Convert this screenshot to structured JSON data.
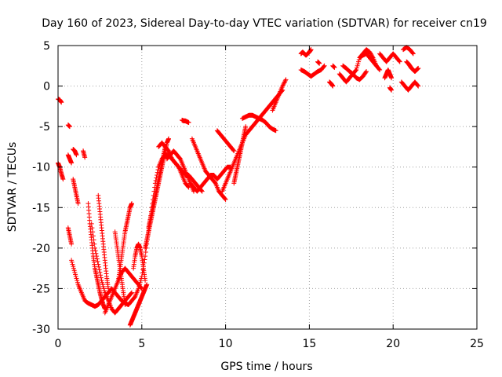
{
  "chart_data": {
    "type": "scatter",
    "title": "Day 160 of 2023, Sidereal Day-to-day VTEC variation (SDTVAR) for receiver cn19",
    "xlabel": "GPS time / hours",
    "ylabel": "SDTVAR / TECUs",
    "xlim": [
      0,
      25
    ],
    "ylim": [
      -30,
      5
    ],
    "xticks": [
      0,
      5,
      10,
      15,
      20,
      25
    ],
    "yticks": [
      -30,
      -25,
      -20,
      -15,
      -10,
      -5,
      0,
      5
    ],
    "grid": true,
    "marker": "+",
    "series": [
      {
        "name": "SDTVAR",
        "color": "#ff0000",
        "tracks": [
          {
            "x": [
              0.0,
              0.1,
              0.2
            ],
            "y": [
              -1.6,
              -1.7,
              -2.0
            ]
          },
          {
            "x": [
              0.6,
              0.7
            ],
            "y": [
              -4.8,
              -5.0
            ]
          },
          {
            "x": [
              0.0,
              0.1,
              0.2,
              0.3
            ],
            "y": [
              -9.5,
              -10.0,
              -10.8,
              -11.5
            ]
          },
          {
            "x": [
              0.6,
              0.7,
              0.8
            ],
            "y": [
              -8.5,
              -9.0,
              -9.5
            ]
          },
          {
            "x": [
              0.9,
              1.0,
              1.1
            ],
            "y": [
              -7.8,
              -8.0,
              -8.5
            ]
          },
          {
            "x": [
              1.5,
              1.6
            ],
            "y": [
              -8.0,
              -8.8
            ]
          },
          {
            "x": [
              0.6,
              0.7,
              0.8
            ],
            "y": [
              -17.5,
              -18.5,
              -19.5
            ]
          },
          {
            "x": [
              0.8,
              1.0,
              1.2,
              1.4,
              1.6,
              1.8,
              2.0,
              2.2,
              2.4,
              2.6,
              2.8,
              3.0,
              3.2,
              3.4,
              3.6,
              3.8,
              4.0,
              4.2,
              4.4,
              4.6,
              4.8,
              5.0,
              5.2,
              5.4,
              5.6,
              5.8,
              6.0
            ],
            "y": [
              -21.5,
              -23.0,
              -24.5,
              -25.5,
              -26.5,
              -26.8,
              -27.0,
              -27.2,
              -27.0,
              -26.5,
              -26.0,
              -25.5,
              -25.0,
              -25.5,
              -26.0,
              -26.5,
              -26.8,
              -27.0,
              -26.5,
              -26.0,
              -25.0,
              -23.5,
              -21.0,
              -18.0,
              -15.0,
              -12.0,
              -10.0
            ]
          },
          {
            "x": [
              0.9,
              1.0,
              1.1,
              1.2
            ],
            "y": [
              -11.5,
              -12.5,
              -13.5,
              -14.5
            ]
          },
          {
            "x": [
              1.8,
              1.9,
              2.0,
              2.1,
              2.2,
              2.3,
              2.4,
              2.5,
              2.6,
              2.7,
              2.8
            ],
            "y": [
              -14.5,
              -17.0,
              -19.0,
              -21.0,
              -22.5,
              -23.5,
              -24.5,
              -25.5,
              -26.3,
              -27.0,
              -27.5
            ]
          },
          {
            "x": [
              2.0,
              2.2,
              2.4,
              2.6,
              2.8,
              3.0,
              3.2,
              3.4,
              3.6,
              3.8,
              4.0,
              4.2,
              4.4
            ],
            "y": [
              -17.0,
              -20.0,
              -22.0,
              -24.0,
              -25.5,
              -26.5,
              -27.5,
              -28.0,
              -27.5,
              -27.0,
              -26.5,
              -26.0,
              -25.5
            ]
          },
          {
            "x": [
              2.4,
              2.5,
              2.6,
              2.7,
              2.8,
              2.9,
              3.0
            ],
            "y": [
              -13.5,
              -15.5,
              -17.5,
              -19.5,
              -21.5,
              -23.5,
              -25.0
            ]
          },
          {
            "x": [
              2.8,
              3.0,
              3.2,
              3.4,
              3.6,
              3.8,
              4.0,
              4.2,
              4.4,
              4.6,
              4.8,
              5.0
            ],
            "y": [
              -28.0,
              -27.0,
              -26.0,
              -25.0,
              -24.0,
              -23.0,
              -22.5,
              -23.0,
              -23.5,
              -24.0,
              -24.5,
              -25.0
            ]
          },
          {
            "x": [
              3.4,
              3.5,
              3.6,
              3.7,
              3.8,
              3.9,
              4.0
            ],
            "y": [
              -18.0,
              -19.5,
              -21.0,
              -22.5,
              -24.0,
              -25.5,
              -27.0
            ]
          },
          {
            "x": [
              3.6,
              3.7,
              3.8,
              3.9,
              4.0,
              4.1,
              4.2,
              4.3,
              4.4
            ],
            "y": [
              -24.0,
              -22.5,
              -21.0,
              -19.5,
              -18.0,
              -17.0,
              -16.0,
              -15.0,
              -14.5
            ]
          },
          {
            "x": [
              4.3,
              4.4,
              4.5,
              4.6,
              4.7,
              4.8,
              4.9,
              5.0,
              5.1,
              5.2,
              5.3
            ],
            "y": [
              -29.5,
              -29.0,
              -28.5,
              -28.0,
              -27.5,
              -27.0,
              -26.5,
              -26.0,
              -25.5,
              -25.0,
              -24.5
            ]
          },
          {
            "x": [
              4.5,
              4.6,
              4.7,
              4.8,
              4.9,
              5.0,
              5.1,
              5.2
            ],
            "y": [
              -22.5,
              -21.0,
              -20.0,
              -19.5,
              -20.0,
              -21.0,
              -22.5,
              -24.0
            ]
          },
          {
            "x": [
              5.2,
              5.3,
              5.4,
              5.5,
              5.6,
              5.7,
              5.8,
              5.9,
              6.0,
              6.1,
              6.2,
              6.3,
              6.4,
              6.5,
              6.6
            ],
            "y": [
              -20.0,
              -19.0,
              -18.0,
              -17.0,
              -16.0,
              -15.0,
              -14.0,
              -13.0,
              -12.0,
              -11.0,
              -10.0,
              -9.0,
              -8.0,
              -7.0,
              -6.5
            ]
          },
          {
            "x": [
              5.4,
              5.5,
              5.6,
              5.7,
              5.8,
              5.9,
              6.0,
              6.1,
              6.2,
              6.3,
              6.4
            ],
            "y": [
              -17.5,
              -16.5,
              -15.5,
              -14.5,
              -13.5,
              -12.5,
              -11.5,
              -10.5,
              -9.5,
              -8.5,
              -7.5
            ]
          },
          {
            "x": [
              6.0,
              6.2,
              6.4,
              6.6,
              6.8,
              7.0,
              7.2,
              7.4,
              7.6,
              7.8
            ],
            "y": [
              -10.0,
              -9.0,
              -8.5,
              -8.5,
              -9.0,
              -9.5,
              -10.0,
              -11.0,
              -12.0,
              -12.5
            ]
          },
          {
            "x": [
              6.0,
              6.2,
              6.4,
              6.6,
              6.8,
              7.0,
              7.2,
              7.4,
              7.6,
              7.8,
              8.0,
              8.2,
              8.4,
              8.6
            ],
            "y": [
              -7.5,
              -7.0,
              -7.5,
              -8.0,
              -9.0,
              -9.5,
              -10.0,
              -10.5,
              -11.0,
              -11.0,
              -11.5,
              -12.0,
              -12.5,
              -13.0
            ]
          },
          {
            "x": [
              6.5,
              6.7,
              6.9,
              7.1,
              7.3,
              7.5,
              7.7,
              7.9,
              8.1
            ],
            "y": [
              -9.0,
              -8.5,
              -8.0,
              -8.5,
              -9.0,
              -10.0,
              -11.0,
              -12.0,
              -13.0
            ]
          },
          {
            "x": [
              7.4,
              7.5,
              7.6,
              7.7,
              7.8
            ],
            "y": [
              -4.2,
              -4.3,
              -4.3,
              -4.4,
              -4.5
            ]
          },
          {
            "x": [
              8.0,
              8.2,
              8.4,
              8.6,
              8.8,
              9.0,
              9.2,
              9.4,
              9.6,
              9.8,
              10.0
            ],
            "y": [
              -6.5,
              -7.5,
              -8.5,
              -9.5,
              -10.5,
              -11.0,
              -11.5,
              -12.0,
              -13.0,
              -13.5,
              -14.0
            ]
          },
          {
            "x": [
              7.9,
              8.1,
              8.3,
              8.5,
              8.7,
              8.9,
              9.1,
              9.3,
              9.5,
              9.7,
              9.9,
              10.1,
              10.3
            ],
            "y": [
              -12.0,
              -12.5,
              -13.0,
              -12.5,
              -12.0,
              -11.5,
              -11.0,
              -11.0,
              -11.5,
              -11.0,
              -10.5,
              -10.0,
              -10.0
            ]
          },
          {
            "x": [
              9.8,
              10.0,
              10.2,
              10.4,
              10.6,
              10.8,
              11.0,
              11.2,
              11.4,
              11.6,
              11.8,
              12.0,
              12.2,
              12.4,
              12.6,
              12.8,
              13.0,
              13.2,
              13.4
            ],
            "y": [
              -13.0,
              -12.0,
              -11.0,
              -10.0,
              -9.0,
              -8.0,
              -7.0,
              -6.0,
              -5.5,
              -5.0,
              -4.5,
              -4.0,
              -3.5,
              -3.0,
              -2.5,
              -2.0,
              -1.5,
              -1.0,
              -0.5
            ]
          },
          {
            "x": [
              9.5,
              9.7,
              9.9,
              10.1,
              10.3,
              10.5
            ],
            "y": [
              -5.5,
              -6.0,
              -6.5,
              -7.0,
              -7.5,
              -8.0
            ]
          },
          {
            "x": [
              10.5,
              10.6,
              10.7,
              10.8,
              10.9,
              11.0,
              11.1,
              11.2
            ],
            "y": [
              -12.0,
              -11.0,
              -10.0,
              -9.0,
              -8.0,
              -7.0,
              -6.0,
              -5.0
            ]
          },
          {
            "x": [
              11.0,
              11.2,
              11.4,
              11.6,
              11.8,
              12.0,
              12.2,
              12.4,
              12.6,
              12.8,
              13.0
            ],
            "y": [
              -4.0,
              -3.8,
              -3.6,
              -3.6,
              -3.8,
              -4.0,
              -4.2,
              -4.5,
              -5.0,
              -5.3,
              -5.5
            ]
          },
          {
            "x": [
              12.8,
              13.0,
              13.2,
              13.4,
              13.6
            ],
            "y": [
              -3.0,
              -2.0,
              -1.0,
              0.0,
              0.8
            ]
          },
          {
            "x": [
              14.5,
              14.6,
              14.7,
              14.8,
              14.9,
              15.0,
              15.1
            ],
            "y": [
              4.0,
              4.2,
              4.0,
              3.8,
              4.0,
              4.2,
              4.5
            ]
          },
          {
            "x": [
              14.5,
              14.7,
              14.9,
              15.1,
              15.3,
              15.5,
              15.7,
              15.9
            ],
            "y": [
              2.0,
              1.8,
              1.5,
              1.2,
              1.5,
              1.8,
              2.0,
              2.5
            ]
          },
          {
            "x": [
              15.5,
              15.6
            ],
            "y": [
              3.0,
              2.8
            ]
          },
          {
            "x": [
              16.4,
              16.5
            ],
            "y": [
              2.5,
              2.3
            ]
          },
          {
            "x": [
              16.8,
              17.0,
              17.2,
              17.4,
              17.6,
              17.8,
              18.0,
              18.2,
              18.4,
              18.6,
              18.8,
              19.0,
              19.2
            ],
            "y": [
              1.5,
              1.0,
              0.5,
              1.0,
              1.5,
              2.0,
              3.5,
              4.0,
              4.5,
              4.2,
              3.5,
              2.5,
              2.0
            ]
          },
          {
            "x": [
              17.0,
              17.2,
              17.4,
              17.6,
              17.8,
              18.0,
              18.2,
              18.4
            ],
            "y": [
              2.5,
              2.2,
              1.8,
              1.5,
              1.0,
              0.8,
              1.2,
              1.8
            ]
          },
          {
            "x": [
              16.2,
              16.3,
              16.4
            ],
            "y": [
              0.5,
              0.3,
              0.0
            ]
          },
          {
            "x": [
              18.0,
              18.2,
              18.4,
              18.6,
              18.8,
              19.0
            ],
            "y": [
              3.5,
              3.8,
              4.0,
              3.5,
              3.0,
              2.5
            ]
          },
          {
            "x": [
              19.2,
              19.4,
              19.6,
              19.8,
              20.0,
              20.2,
              20.4
            ],
            "y": [
              4.0,
              3.5,
              3.0,
              3.5,
              4.0,
              3.5,
              3.0
            ]
          },
          {
            "x": [
              19.5,
              19.6,
              19.7,
              19.8,
              19.9
            ],
            "y": [
              1.0,
              1.5,
              2.0,
              1.5,
              1.0
            ]
          },
          {
            "x": [
              19.8,
              19.9
            ],
            "y": [
              -0.2,
              -0.5
            ]
          },
          {
            "x": [
              20.6,
              20.8,
              21.0,
              21.2
            ],
            "y": [
              4.5,
              4.8,
              4.5,
              4.0
            ]
          },
          {
            "x": [
              20.8,
              20.9,
              21.0,
              21.1,
              21.2,
              21.3,
              21.4,
              21.5
            ],
            "y": [
              3.0,
              2.8,
              2.5,
              2.2,
              2.0,
              1.8,
              2.0,
              2.2
            ]
          },
          {
            "x": [
              20.5,
              20.7,
              20.9,
              21.1,
              21.3,
              21.5
            ],
            "y": [
              0.5,
              0.0,
              -0.5,
              0.0,
              0.5,
              0.0
            ]
          }
        ]
      }
    ]
  }
}
